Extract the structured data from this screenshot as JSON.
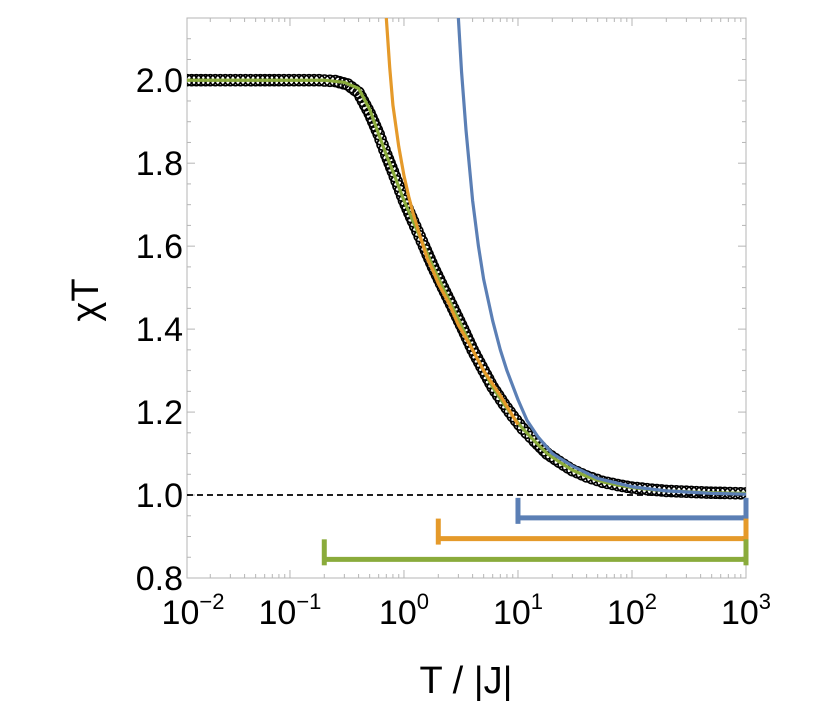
{
  "chart_data": {
    "type": "line",
    "xlabel": "T / |J|",
    "ylabel": "χT",
    "xscale": "log",
    "xlim": [
      0.0125,
      1000
    ],
    "ylim": [
      0.8,
      2.15
    ],
    "x_ticks": [
      {
        "value": 0.01,
        "base": "10",
        "exp": "−2"
      },
      {
        "value": 0.1,
        "base": "10",
        "exp": "−1"
      },
      {
        "value": 1,
        "base": "10",
        "exp": "0"
      },
      {
        "value": 10,
        "base": "10",
        "exp": "1"
      },
      {
        "value": 100,
        "base": "10",
        "exp": "2"
      },
      {
        "value": 1000,
        "base": "10",
        "exp": "3"
      }
    ],
    "y_ticks": [
      {
        "value": 0.8,
        "label": "0.8"
      },
      {
        "value": 1.0,
        "label": "1.0"
      },
      {
        "value": 1.2,
        "label": "1.2"
      },
      {
        "value": 1.4,
        "label": "1.4"
      },
      {
        "value": 1.6,
        "label": "1.6"
      },
      {
        "value": 1.8,
        "label": "1.8"
      },
      {
        "value": 2.0,
        "label": "2.0"
      }
    ],
    "reference_line": {
      "y": 1.0,
      "style": "dashed",
      "color": "#000000"
    },
    "grid": false,
    "series": [
      {
        "kind": "markers",
        "color": "#000000",
        "x": [
          0.0125,
          0.02,
          0.03,
          0.05,
          0.08,
          0.12,
          0.18,
          0.25,
          0.32,
          0.4,
          0.5,
          0.6,
          0.7,
          0.8,
          1.0,
          1.2,
          1.5,
          1.8,
          2.2,
          2.7,
          3.3,
          4,
          5,
          6,
          7.5,
          9,
          11,
          14,
          18,
          23,
          30,
          40,
          55,
          75,
          100,
          150,
          200,
          300,
          450,
          650,
          1000
        ],
        "y": [
          2.0,
          2.0,
          2.0,
          2.0,
          2.0,
          2.0,
          2.0,
          1.998,
          1.99,
          1.97,
          1.92,
          1.87,
          1.82,
          1.78,
          1.71,
          1.66,
          1.6,
          1.55,
          1.5,
          1.45,
          1.4,
          1.35,
          1.3,
          1.26,
          1.22,
          1.19,
          1.16,
          1.13,
          1.1,
          1.08,
          1.06,
          1.045,
          1.032,
          1.024,
          1.018,
          1.013,
          1.01,
          1.008,
          1.006,
          1.005,
          1.004
        ]
      },
      {
        "kind": "line",
        "color": "#8aab3b",
        "x": [
          0.0125,
          0.05,
          0.1,
          0.2,
          0.3,
          0.4,
          0.5,
          0.6,
          0.7,
          0.8,
          1.0,
          1.2,
          1.5,
          1.8,
          2.2,
          2.7,
          3.3,
          4,
          5,
          6,
          7.5,
          9,
          11,
          14,
          18,
          23,
          30,
          40,
          55,
          75,
          100,
          150,
          200,
          300,
          450,
          650,
          1000
        ],
        "y": [
          2.0,
          2.0,
          2.0,
          2.0,
          1.995,
          1.98,
          1.93,
          1.87,
          1.82,
          1.78,
          1.71,
          1.66,
          1.6,
          1.55,
          1.5,
          1.45,
          1.4,
          1.35,
          1.3,
          1.26,
          1.22,
          1.19,
          1.16,
          1.13,
          1.1,
          1.08,
          1.06,
          1.045,
          1.032,
          1.024,
          1.018,
          1.013,
          1.01,
          1.008,
          1.006,
          1.005,
          1.004
        ]
      },
      {
        "kind": "line",
        "color": "#e59a2a",
        "x": [
          0.7,
          0.75,
          0.8,
          0.9,
          1.0,
          1.1,
          1.2,
          1.4,
          1.6,
          1.8,
          2.0,
          2.5,
          3,
          4,
          5,
          7,
          10
        ],
        "y": [
          2.15,
          2.03,
          1.94,
          1.84,
          1.77,
          1.72,
          1.68,
          1.62,
          1.57,
          1.54,
          1.51,
          1.46,
          1.41,
          1.35,
          1.3,
          1.24,
          1.17
        ]
      },
      {
        "kind": "line",
        "color": "#5b7fb5",
        "x": [
          3.0,
          3.2,
          3.5,
          4,
          4.5,
          5,
          6,
          7,
          8,
          10,
          12,
          15,
          20,
          30,
          50,
          100,
          200,
          500,
          1000
        ],
        "y": [
          2.15,
          2.02,
          1.88,
          1.71,
          1.6,
          1.52,
          1.42,
          1.35,
          1.3,
          1.23,
          1.18,
          1.14,
          1.1,
          1.07,
          1.04,
          1.02,
          1.01,
          1.004,
          1.002
        ]
      }
    ],
    "range_bars": [
      {
        "color": "#5b7fb5",
        "x_start": 10,
        "x_end": 1000,
        "y": 0.945
      },
      {
        "color": "#e59a2a",
        "x_start": 2,
        "x_end": 1000,
        "y": 0.895
      },
      {
        "color": "#8aab3b",
        "x_start": 0.2,
        "x_end": 1000,
        "y": 0.845
      }
    ]
  }
}
